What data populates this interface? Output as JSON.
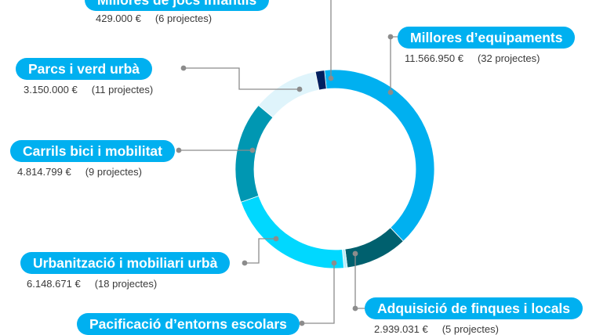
{
  "chart_data": {
    "type": "pie",
    "variant": "donut",
    "title": "",
    "currency": "€",
    "slices": [
      {
        "label": "Millores d’equipaments",
        "value": 11566950,
        "amount_text": "11.566.950 €",
        "projects_text": "(32 projectes)",
        "color": "#00b0f0"
      },
      {
        "label": "Adquisició de finques i locals",
        "value": 2939031,
        "amount_text": "2.939.031 €",
        "projects_text": "(5 projectes)",
        "color": "#00606e"
      },
      {
        "label": "Pacificació d’entorns escolars",
        "value": 160000,
        "amount_text": "",
        "projects_text": "",
        "color": "#b8ecf8"
      },
      {
        "label": "Urbanització i mobiliari urbà",
        "value": 6148671,
        "amount_text": "6.148.671 €",
        "projects_text": "(18 projectes)",
        "color": "#00d8ff"
      },
      {
        "label": "Carrils bici i mobilitat",
        "value": 4814799,
        "amount_text": "4.814.799 €",
        "projects_text": "(9 projectes)",
        "color": "#0097b2"
      },
      {
        "label": "Parcs i verd urbà",
        "value": 3150000,
        "amount_text": "3.150.000 €",
        "projects_text": "(11 projectes)",
        "color": "#dff4fb"
      },
      {
        "label": "Millores de jocs infantils",
        "value": 429000,
        "amount_text": "429.000 €",
        "projects_text": "(6 projectes)",
        "color": "#002060"
      }
    ],
    "legend": "none",
    "grid": false
  },
  "colors": {
    "pill_background": "#00b0f0",
    "pill_text": "#ffffff",
    "leader_line": "#8c8c8c"
  }
}
